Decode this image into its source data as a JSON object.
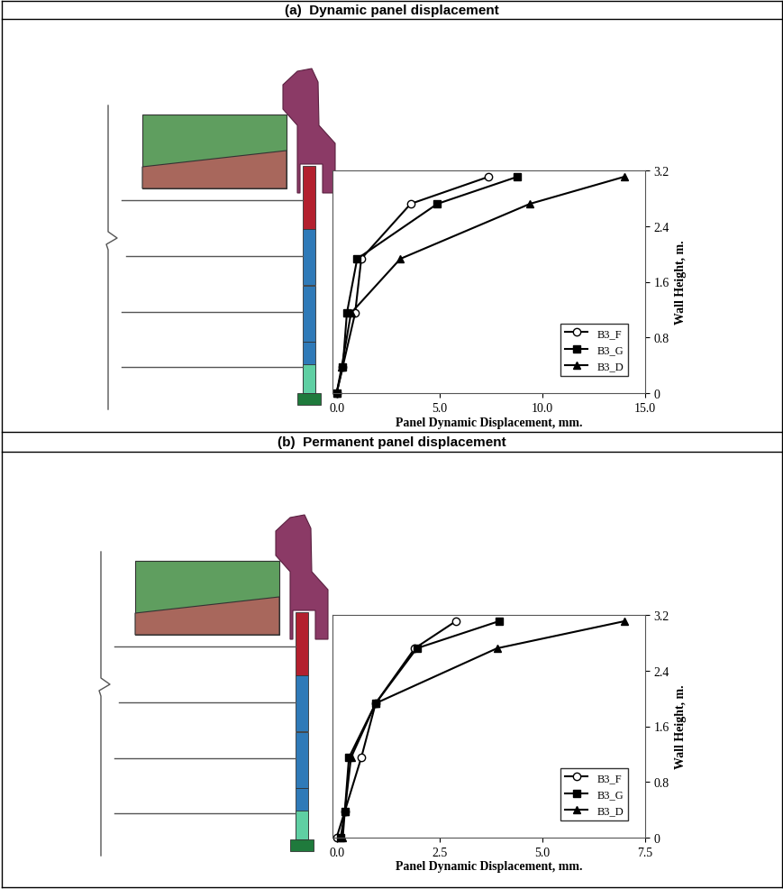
{
  "chart_data": [
    {
      "type": "line",
      "title": "(a)  Dynamic panel displacement",
      "x_label": "Panel Dynamic Displacement, mm.",
      "y_label": "Wall Height, m.",
      "xlim": [
        -0.2,
        15
      ],
      "xticks": [
        {
          "value": 0,
          "label": "0.0"
        },
        {
          "value": 5,
          "label": "5.0"
        },
        {
          "value": 10,
          "label": "10.0"
        },
        {
          "value": 15,
          "label": "15.0"
        }
      ],
      "ylim": [
        0,
        3.2
      ],
      "yticks": [
        0,
        0.8,
        1.6,
        2.4,
        3.2
      ],
      "legend": "lower right",
      "series": [
        {
          "name": "B3_F",
          "color": "#000000",
          "marker": "open_circle",
          "x": [
            0.0,
            0.3,
            0.9,
            1.2,
            3.6,
            7.4
          ],
          "values": [
            0,
            0.38,
            1.15,
            1.93,
            2.72,
            3.11
          ]
        },
        {
          "name": "B3_G",
          "color": "#000000",
          "marker": "square",
          "x": [
            0.0,
            0.3,
            0.5,
            1.0,
            4.9,
            8.8
          ],
          "values": [
            0,
            0.38,
            1.15,
            1.93,
            2.72,
            3.11
          ]
        },
        {
          "name": "B3_D",
          "color": "#000000",
          "marker": "triangle",
          "x": [
            0.0,
            0.25,
            0.7,
            3.1,
            9.4,
            14.0
          ],
          "values": [
            0,
            0.38,
            1.15,
            1.93,
            2.72,
            3.11
          ]
        }
      ]
    },
    {
      "type": "line",
      "title": "(b)  Permanent panel displacement",
      "x_label": "Panel Dynamic Displacement, mm.",
      "y_label": "Wall Height, m.",
      "xlim": [
        -0.1,
        7.5
      ],
      "xticks": [
        {
          "value": 0,
          "label": "0.0"
        },
        {
          "value": 2.5,
          "label": "2.5"
        },
        {
          "value": 5,
          "label": "5.0"
        },
        {
          "value": 7.5,
          "label": "7.5"
        }
      ],
      "ylim": [
        0,
        3.2
      ],
      "yticks": [
        0,
        0.8,
        1.6,
        2.4,
        3.2
      ],
      "legend": "lower right",
      "series": [
        {
          "name": "B3_F",
          "color": "#000000",
          "marker": "open_circle",
          "x": [
            0.0,
            0.2,
            0.6,
            0.95,
            1.9,
            2.9
          ],
          "values": [
            0,
            0.38,
            1.15,
            1.93,
            2.72,
            3.11
          ]
        },
        {
          "name": "B3_G",
          "color": "#000000",
          "marker": "square",
          "x": [
            0.1,
            0.2,
            0.3,
            0.95,
            1.95,
            3.95
          ],
          "values": [
            0,
            0.38,
            1.15,
            1.93,
            2.72,
            3.11
          ]
        },
        {
          "name": "B3_D",
          "color": "#000000",
          "marker": "triangle",
          "x": [
            0.15,
            0.2,
            0.35,
            0.95,
            3.9,
            7.0
          ],
          "values": [
            0,
            0.38,
            1.15,
            1.93,
            2.72,
            3.11
          ]
        }
      ]
    }
  ]
}
